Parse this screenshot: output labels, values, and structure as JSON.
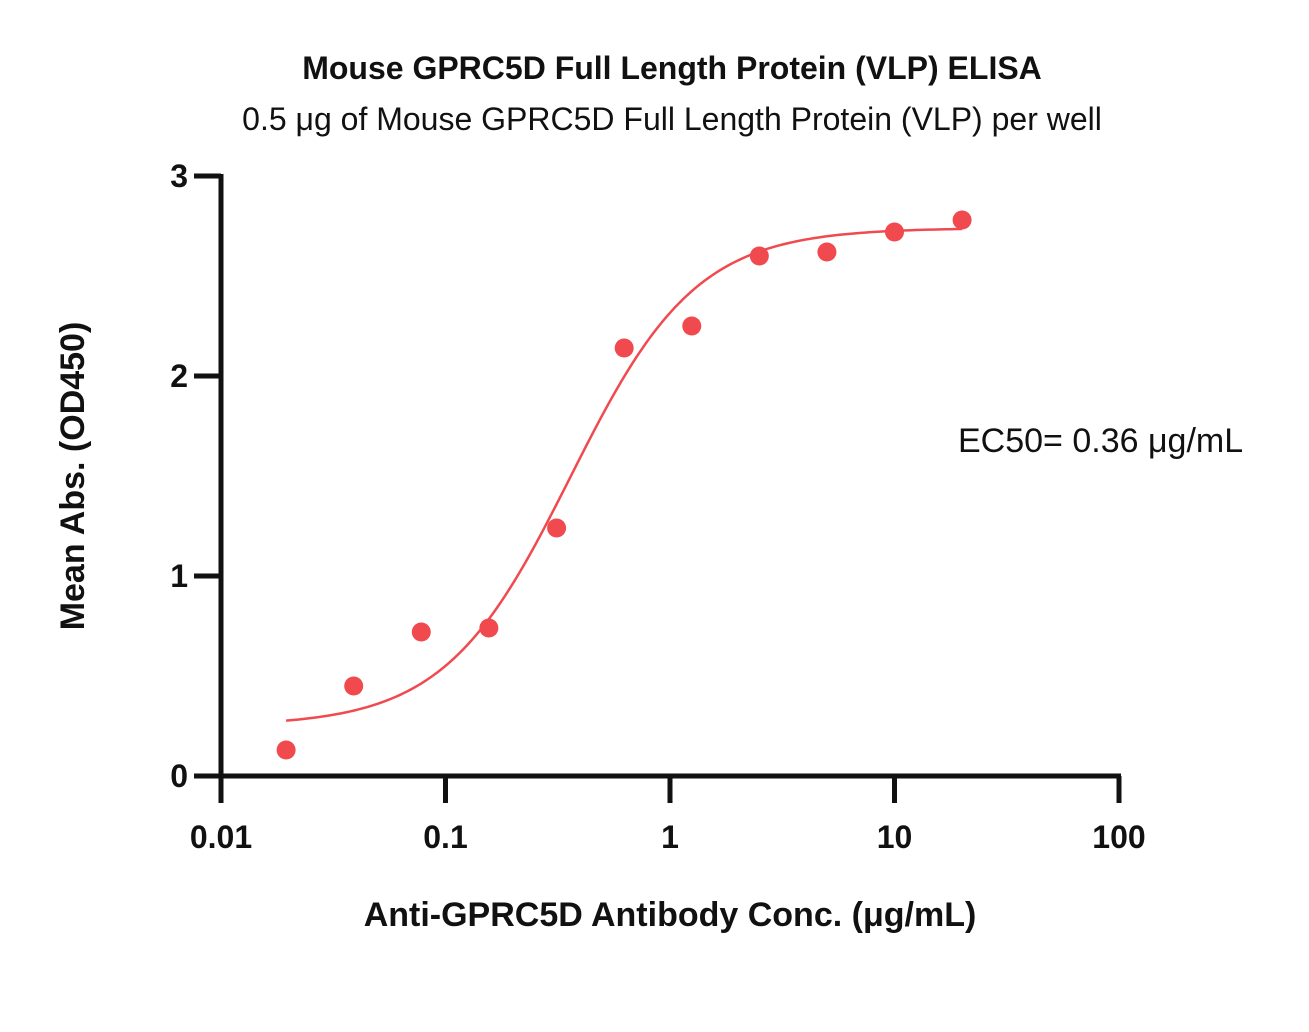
{
  "chart_data": {
    "type": "scatter",
    "title": "Mouse GPRC5D Full Length Protein (VLP) ELISA",
    "subtitle": "0.5 μg of Mouse GPRC5D Full Length Protein (VLP) per well",
    "xlabel": "Anti-GPRC5D Antibody Conc. (μg/mL)",
    "ylabel": "Mean Abs. (OD450)",
    "x_scale": "log",
    "xlim": [
      0.01,
      100
    ],
    "ylim": [
      0,
      3
    ],
    "x_ticks": [
      "0.01",
      "0.1",
      "1",
      "10",
      "100"
    ],
    "x_tick_values": [
      0.01,
      0.1,
      1,
      10,
      100
    ],
    "y_ticks": [
      "0",
      "1",
      "2",
      "3"
    ],
    "y_tick_values": [
      0,
      1,
      2,
      3
    ],
    "grid": false,
    "series": [
      {
        "x": [
          0.0195,
          0.039,
          0.078,
          0.156,
          0.3125,
          0.625,
          1.25,
          2.5,
          5,
          10,
          20
        ],
        "y": [
          0.13,
          0.45,
          0.72,
          0.74,
          1.24,
          2.14,
          2.25,
          2.6,
          2.62,
          2.72,
          2.78
        ],
        "color": "#f04a4f",
        "fit": {
          "type": "4PL",
          "bottom": 0.25,
          "top": 2.74,
          "ec50": 0.36,
          "hill": 1.55,
          "x_range": [
            0.0195,
            20
          ]
        }
      }
    ],
    "annotations": [
      {
        "text": "EC50= 0.36 μg/mL"
      }
    ]
  }
}
